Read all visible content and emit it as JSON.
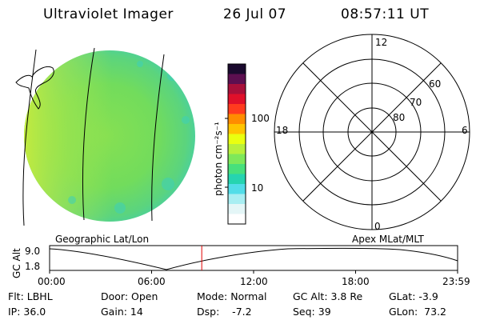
{
  "header": {
    "instrument": "Ultraviolet Imager",
    "date": "26 Jul 07",
    "time": "08:57:11 UT"
  },
  "colorbar": {
    "unit_label": "photon cm⁻²s⁻¹",
    "tick_100": "100",
    "tick_10": "10",
    "colors": [
      "#1a0a2e",
      "#5c0f50",
      "#a8103a",
      "#e0102a",
      "#ff3b1e",
      "#ff8c00",
      "#ffc400",
      "#eaff10",
      "#b8f03c",
      "#7ee85a",
      "#47e07c",
      "#26d4b0",
      "#52dde8",
      "#a8eef2",
      "#e4f6f7",
      "#ffffff"
    ]
  },
  "polar_plot": {
    "mlt_labels": {
      "top": "12",
      "right": "6",
      "bottom": "0",
      "left": "18"
    },
    "mlat_labels": [
      "60",
      "70",
      "80"
    ]
  },
  "labels": {
    "geographic": "Geographic Lat/Lon",
    "apex": "Apex MLat/MLT"
  },
  "alt_plot": {
    "y_label": "GC Alt",
    "y_max": "9.0",
    "y_min": "1.8",
    "x_ticks": [
      "00:00",
      "06:00",
      "12:00",
      "18:00",
      "23:59"
    ],
    "current_time_hours": 8.95,
    "marker_color": "#e00000"
  },
  "footer": {
    "flt": "Flt: LBHL",
    "door": "Door: Open",
    "mode": "Mode: Normal",
    "gc_alt": "GC Alt: 3.8 Re",
    "glat": "GLat:  -3.9",
    "ip": "IP: 36.0",
    "gain": "Gain: 14",
    "dsp": "Dsp:    -7.2",
    "seq": "Seq: 39",
    "glon": "GLon:  73.2"
  }
}
